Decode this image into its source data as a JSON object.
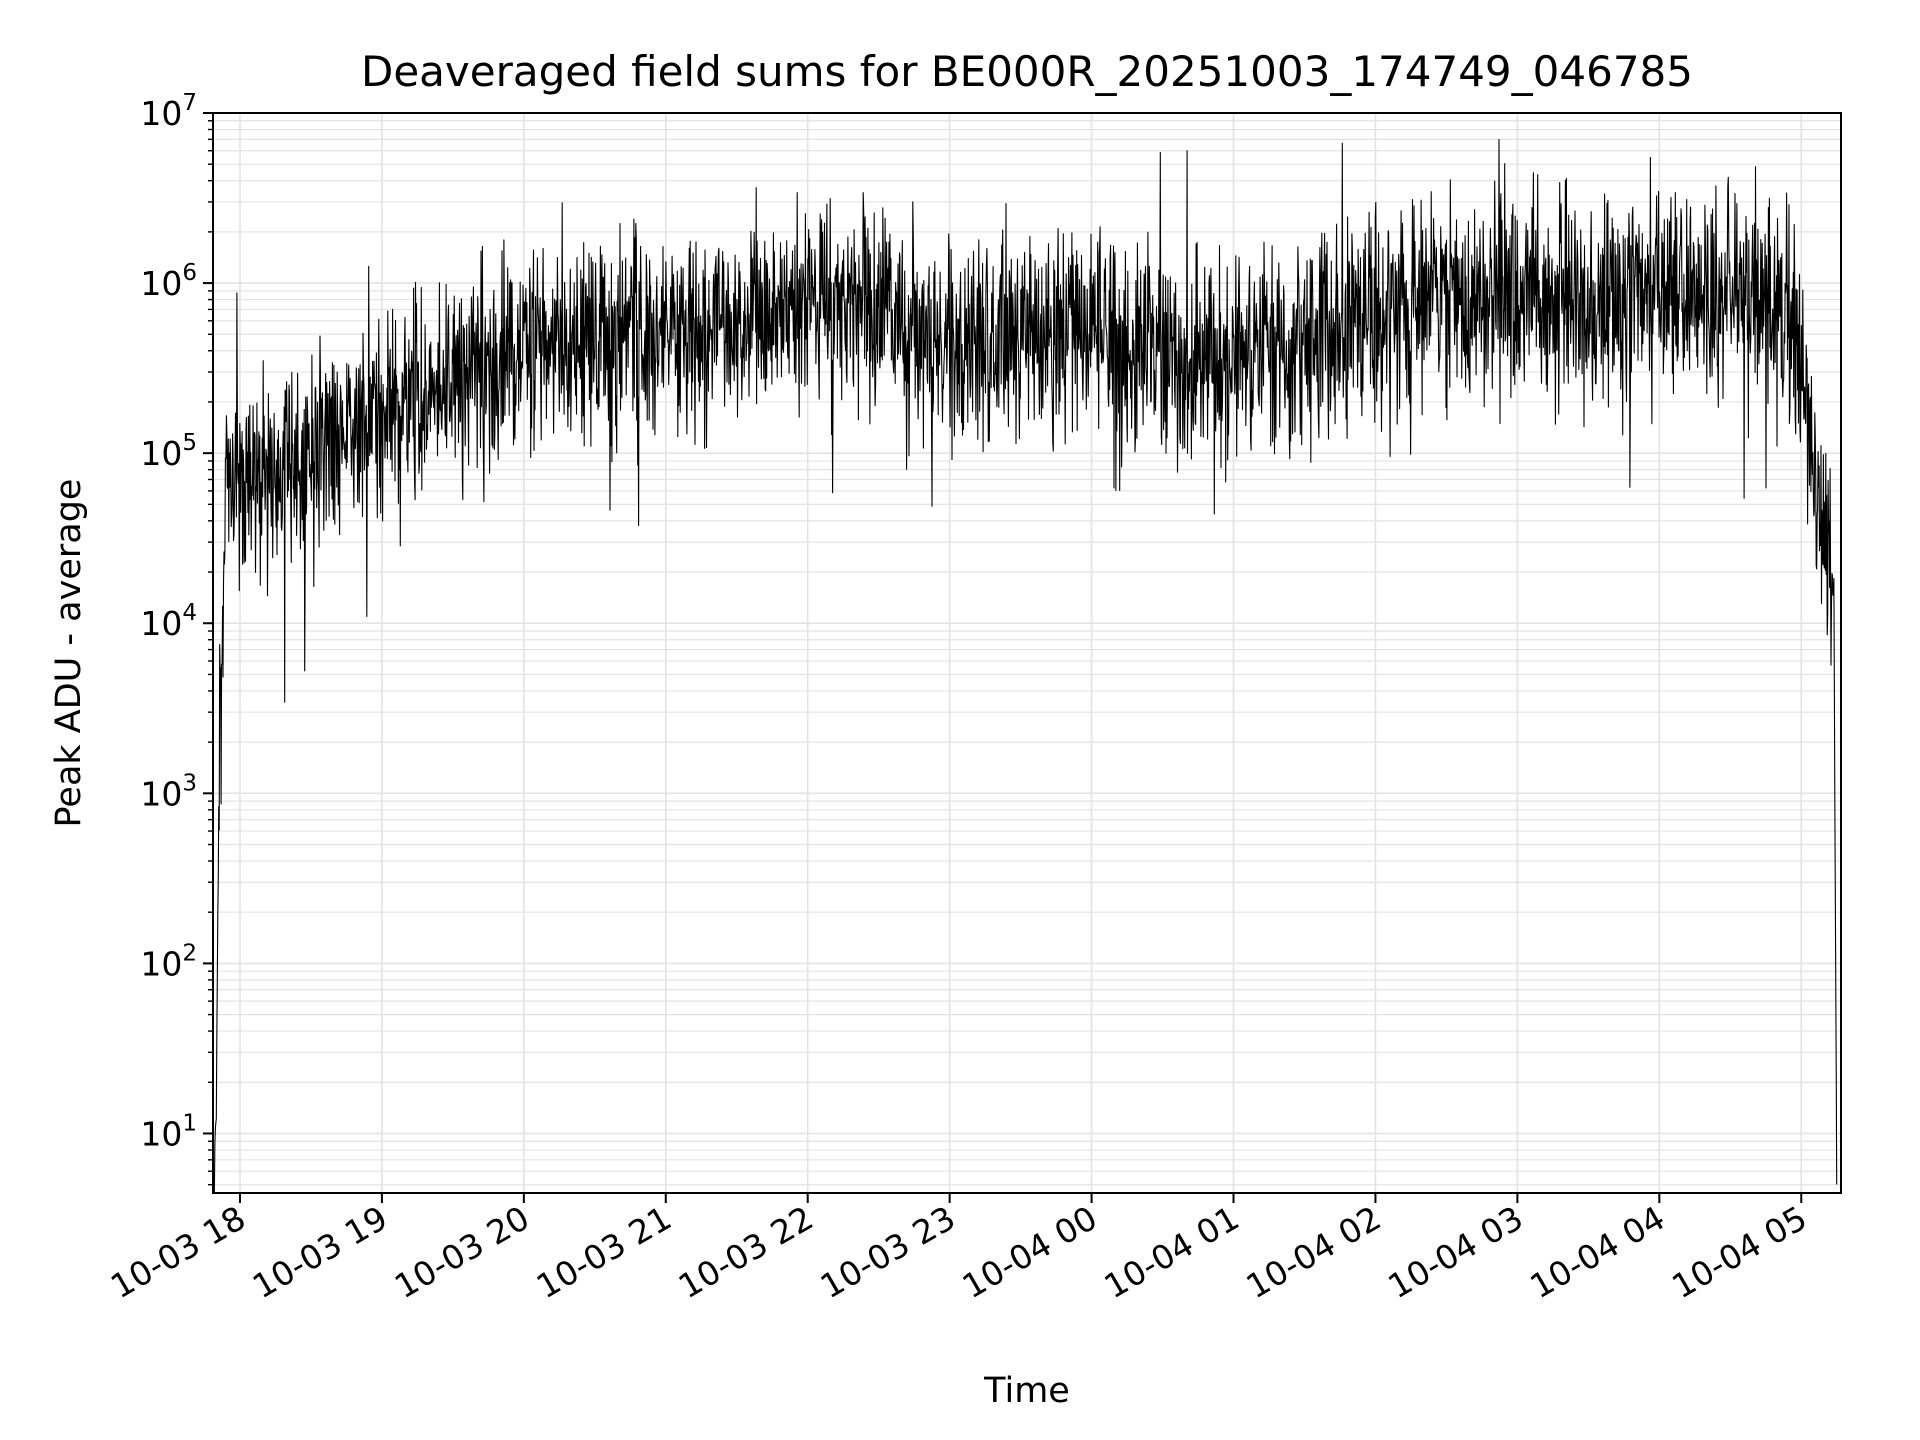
{
  "chart_data": {
    "type": "line",
    "title": "Deaveraged field sums for BE000R_20251003_174749_046785",
    "xlabel": "Time",
    "ylabel": "Peak ADU - average",
    "yscale": "log",
    "ylim_exp": [
      0.65,
      7
    ],
    "y_ticks": [
      {
        "base": "10",
        "exp": "1",
        "value_exp": 1
      },
      {
        "base": "10",
        "exp": "2",
        "value_exp": 2
      },
      {
        "base": "10",
        "exp": "3",
        "value_exp": 3
      },
      {
        "base": "10",
        "exp": "4",
        "value_exp": 4
      },
      {
        "base": "10",
        "exp": "5",
        "value_exp": 5
      },
      {
        "base": "10",
        "exp": "6",
        "value_exp": 6
      },
      {
        "base": "10",
        "exp": "7",
        "value_exp": 7
      }
    ],
    "x_unit": "hours since 10-03 17:00",
    "xlim": [
      0.81,
      12.28
    ],
    "x_ticks": [
      {
        "label": "10-03 18",
        "value": 1
      },
      {
        "label": "10-03 19",
        "value": 2
      },
      {
        "label": "10-03 20",
        "value": 3
      },
      {
        "label": "10-03 21",
        "value": 4
      },
      {
        "label": "10-03 22",
        "value": 5
      },
      {
        "label": "10-03 23",
        "value": 6
      },
      {
        "label": "10-04 00",
        "value": 7
      },
      {
        "label": "10-04 01",
        "value": 8
      },
      {
        "label": "10-04 02",
        "value": 9
      },
      {
        "label": "10-04 03",
        "value": 10
      },
      {
        "label": "10-04 04",
        "value": 11
      },
      {
        "label": "10-04 05",
        "value": 12
      }
    ],
    "grid": true,
    "line_color": "#000000",
    "grid_color": "#e3e3e3",
    "series": [
      {
        "name": "field sums",
        "envelope_hours": [
          0.81,
          0.83,
          0.85,
          0.88,
          0.9,
          1.0,
          1.2,
          1.5,
          2.0,
          2.5,
          3.0,
          3.5,
          4.0,
          4.5,
          5.0,
          5.5,
          6.0,
          6.5,
          7.0,
          7.5,
          8.0,
          8.5,
          9.0,
          9.5,
          10.0,
          10.5,
          11.0,
          11.5,
          11.8,
          12.0,
          12.1,
          12.2,
          12.23,
          12.25
        ],
        "envelope_log10": [
          0.7,
          1.0,
          3.1,
          4.2,
          4.85,
          4.9,
          4.85,
          5.0,
          5.25,
          5.45,
          5.6,
          5.7,
          5.65,
          5.8,
          5.95,
          5.8,
          5.6,
          5.7,
          5.75,
          5.55,
          5.6,
          5.7,
          5.85,
          5.95,
          5.95,
          5.9,
          5.95,
          5.95,
          5.9,
          5.5,
          4.8,
          4.4,
          4.1,
          0.7
        ],
        "noise_log10": 0.5,
        "num_points": 3400
      }
    ]
  }
}
